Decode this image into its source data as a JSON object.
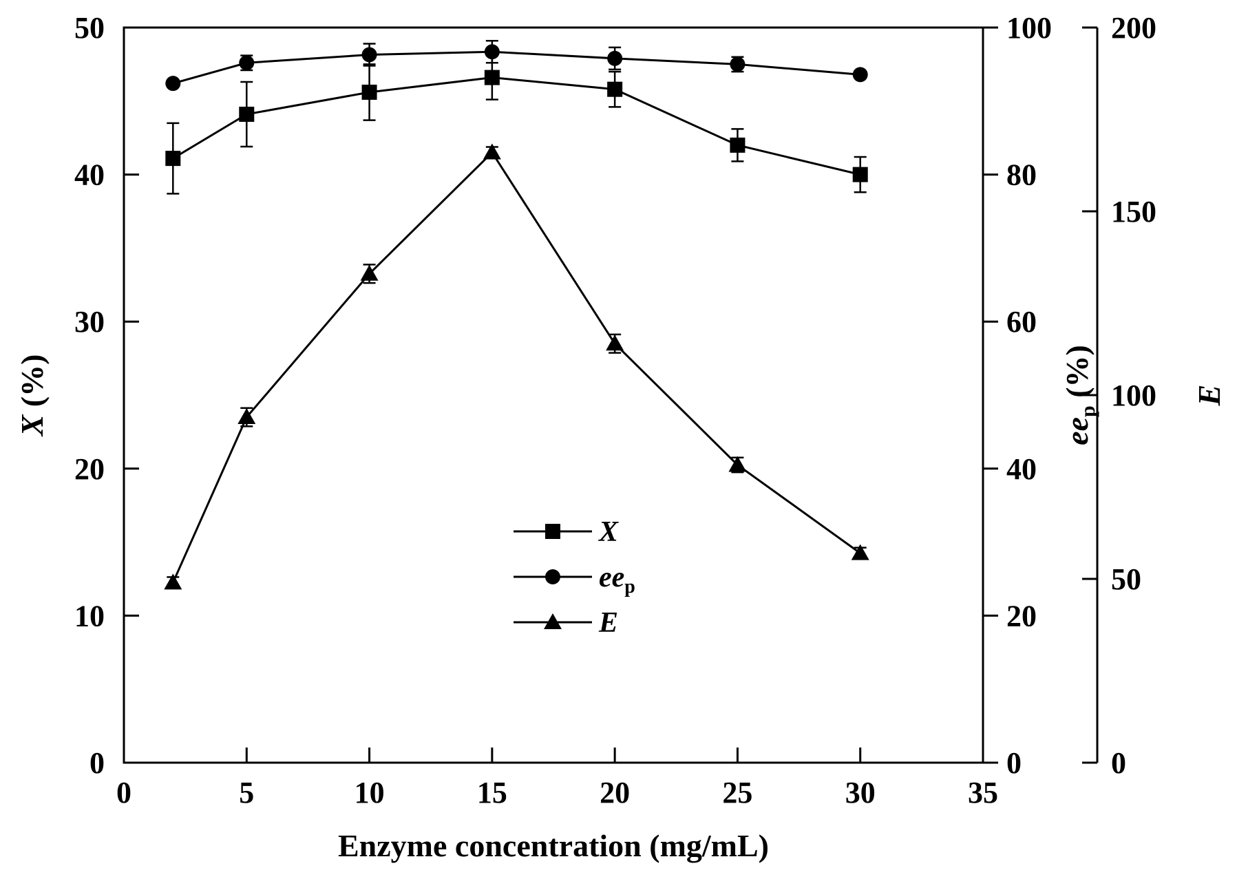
{
  "chart_data": {
    "type": "line",
    "x": [
      2,
      5,
      10,
      15,
      20,
      25,
      30
    ],
    "xlabel": "Enzyme concentration (mg/mL)",
    "xlim": [
      0,
      35
    ],
    "xticks": [
      "0",
      "5",
      "10",
      "15",
      "20",
      "25",
      "30",
      "35"
    ],
    "axes": {
      "left": {
        "label_main": "X",
        "label_rest": " (%)",
        "ylim": [
          0,
          50
        ],
        "ticks": [
          "0",
          "10",
          "20",
          "30",
          "40",
          "50"
        ]
      },
      "right1": {
        "label_main": "ee",
        "label_sub": "p",
        "label_rest": " (%)",
        "ylim": [
          0,
          100
        ],
        "ticks": [
          "0",
          "20",
          "40",
          "60",
          "80",
          "100"
        ]
      },
      "right2": {
        "label_main": "E",
        "ylim": [
          0,
          200
        ],
        "ticks": [
          "0",
          "50",
          "100",
          "150",
          "200"
        ]
      }
    },
    "series": [
      {
        "name": "X",
        "axis": "left",
        "marker": "square",
        "values": [
          41.1,
          44.1,
          45.6,
          46.6,
          45.8,
          42.0,
          40.0
        ],
        "errors": [
          2.4,
          2.2,
          1.9,
          1.5,
          1.2,
          1.1,
          1.2
        ]
      },
      {
        "name": "ee",
        "name_sub": "p",
        "axis": "right1",
        "marker": "circle",
        "values": [
          92.4,
          95.2,
          96.3,
          96.7,
          95.8,
          95.0,
          93.6
        ],
        "errors": [
          0.4,
          1.0,
          1.5,
          1.5,
          1.5,
          1.0,
          0.5
        ]
      },
      {
        "name": "E",
        "axis": "right2",
        "marker": "triangle",
        "values": [
          49,
          94,
          133,
          166,
          114,
          81,
          57
        ],
        "errors": [
          1.5,
          2.5,
          2.5,
          1.5,
          2.5,
          2.0,
          1.5
        ]
      }
    ],
    "legend_position": "center"
  }
}
